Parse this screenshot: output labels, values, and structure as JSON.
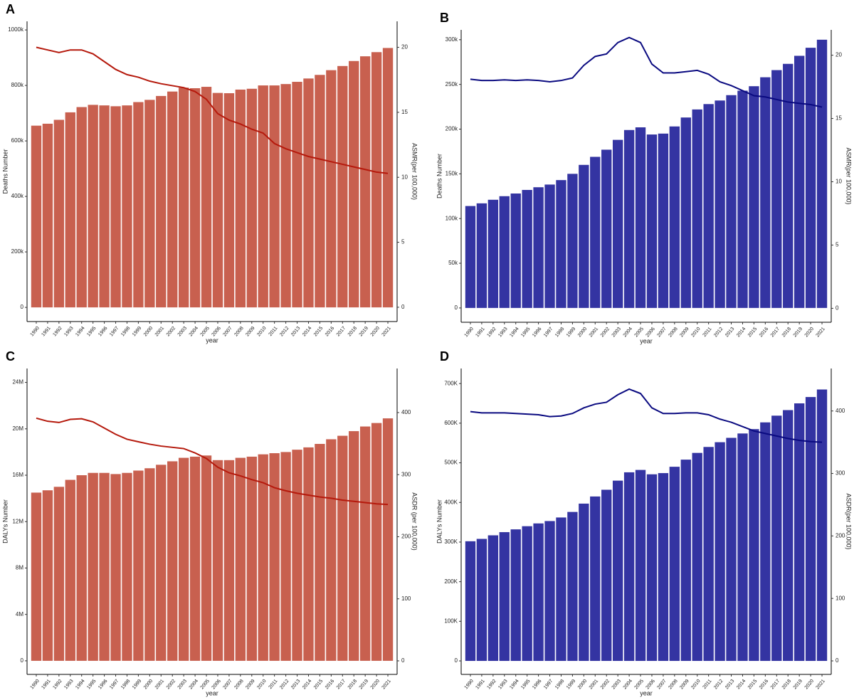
{
  "chart_data": [
    {
      "type": "bar",
      "label": "A",
      "xlabel": "year",
      "ylabel": "Deaths Number",
      "y2label": "ASMR(per 100,000)",
      "categories": [
        "1990",
        "1991",
        "1992",
        "1993",
        "1994",
        "1995",
        "1996",
        "1997",
        "1998",
        "1999",
        "2000",
        "2001",
        "2002",
        "2003",
        "2004",
        "2005",
        "2006",
        "2007",
        "2008",
        "2009",
        "2010",
        "2011",
        "2012",
        "2013",
        "2014",
        "2015",
        "2016",
        "2017",
        "2018",
        "2019",
        "2020",
        "2021"
      ],
      "ylim": [
        -51000,
        1031000
      ],
      "yticks": [
        0,
        {
          "value": 200000,
          "label": "200k"
        },
        {
          "value": 400000,
          "label": "400k"
        },
        {
          "value": 600000,
          "label": "600k"
        },
        {
          "value": 800000,
          "label": "800k"
        },
        {
          "value": 1000000,
          "label": "1000k"
        }
      ],
      "y2lim": [
        -1.1,
        22
      ],
      "y2ticks": [
        0,
        5,
        10,
        15,
        20
      ],
      "series": [
        {
          "type": "bar",
          "color": "#c8604f",
          "values": [
            655000,
            662000,
            676000,
            703000,
            722000,
            730000,
            728000,
            725000,
            728000,
            740000,
            748000,
            762000,
            778000,
            792000,
            790000,
            795000,
            773000,
            772000,
            785000,
            788000,
            800000,
            800000,
            805000,
            813000,
            825000,
            838000,
            855000,
            870000,
            888000,
            905000,
            920000,
            935000
          ]
        },
        {
          "type": "line",
          "axis": "y2",
          "color": "#b5190c",
          "values": [
            20.0,
            19.8,
            19.6,
            19.8,
            19.8,
            19.5,
            18.9,
            18.3,
            17.9,
            17.7,
            17.4,
            17.2,
            17.05,
            16.9,
            16.6,
            16.0,
            14.9,
            14.4,
            14.1,
            13.7,
            13.4,
            12.6,
            12.2,
            11.9,
            11.6,
            11.4,
            11.2,
            11.0,
            10.8,
            10.6,
            10.4,
            10.3
          ]
        }
      ]
    },
    {
      "type": "bar",
      "label": "B",
      "xlabel": "year",
      "ylabel": "Deaths Number",
      "y2label": "ASMR(per 100,000)",
      "categories": [
        "1990",
        "1991",
        "1992",
        "1993",
        "1994",
        "1995",
        "1996",
        "1997",
        "1998",
        "1999",
        "2000",
        "2001",
        "2002",
        "2003",
        "2004",
        "2005",
        "2006",
        "2007",
        "2008",
        "2009",
        "2010",
        "2011",
        "2012",
        "2013",
        "2014",
        "2015",
        "2016",
        "2017",
        "2018",
        "2019",
        "2020",
        "2021"
      ],
      "ylim": [
        -16000,
        311000
      ],
      "yticks": [
        0,
        {
          "value": 50000,
          "label": "50k"
        },
        {
          "value": 100000,
          "label": "100k"
        },
        {
          "value": 150000,
          "label": "150k"
        },
        {
          "value": 200000,
          "label": "200k"
        },
        {
          "value": 250000,
          "label": "250k"
        },
        {
          "value": 300000,
          "label": "300k"
        }
      ],
      "y2lim": [
        -1.1,
        22
      ],
      "y2ticks": [
        0,
        5,
        10,
        15,
        20
      ],
      "series": [
        {
          "type": "bar",
          "color": "#3434a2",
          "values": [
            114000,
            117000,
            121000,
            125000,
            128000,
            132000,
            135000,
            138000,
            143000,
            150000,
            160000,
            169000,
            177000,
            188000,
            199000,
            202000,
            194000,
            195000,
            203000,
            213000,
            222000,
            228000,
            232000,
            238000,
            243000,
            248000,
            258000,
            266000,
            273000,
            282000,
            291000,
            300000
          ]
        },
        {
          "type": "line",
          "axis": "y2",
          "color": "#0a0a80",
          "values": [
            18.1,
            18.0,
            18.0,
            18.05,
            18.0,
            18.05,
            18.0,
            17.9,
            18.0,
            18.2,
            19.2,
            19.9,
            20.1,
            21.0,
            21.4,
            21.0,
            19.3,
            18.6,
            18.6,
            18.7,
            18.8,
            18.5,
            17.9,
            17.6,
            17.2,
            16.8,
            16.7,
            16.5,
            16.3,
            16.2,
            16.1,
            15.9
          ]
        }
      ]
    },
    {
      "type": "bar",
      "label": "C",
      "xlabel": "year",
      "ylabel": "DALYs Number",
      "y2label": "ASDR (per 100,000)",
      "categories": [
        "1990",
        "1991",
        "1992",
        "1993",
        "1994",
        "1995",
        "1996",
        "1997",
        "1998",
        "1999",
        "2000",
        "2001",
        "2002",
        "2003",
        "2004",
        "2005",
        "2006",
        "2007",
        "2008",
        "2009",
        "2010",
        "2011",
        "2012",
        "2013",
        "2014",
        "2015",
        "2016",
        "2017",
        "2018",
        "2019",
        "2020",
        "2021"
      ],
      "ylim": [
        -1170000,
        25200000
      ],
      "yticks": [
        0,
        {
          "value": 4000000,
          "label": "4M"
        },
        {
          "value": 8000000,
          "label": "8M"
        },
        {
          "value": 12000000,
          "label": "12M"
        },
        {
          "value": 16000000,
          "label": "16M"
        },
        {
          "value": 20000000,
          "label": "20M"
        },
        {
          "value": 24000000,
          "label": "24M"
        }
      ],
      "y2lim": [
        -21.8,
        471
      ],
      "y2ticks": [
        0,
        100,
        200,
        300,
        400
      ],
      "series": [
        {
          "type": "bar",
          "color": "#c8604f",
          "values": [
            14500000,
            14700000,
            15000000,
            15600000,
            16000000,
            16200000,
            16200000,
            16100000,
            16200000,
            16400000,
            16600000,
            16900000,
            17200000,
            17500000,
            17600000,
            17700000,
            17300000,
            17300000,
            17500000,
            17600000,
            17800000,
            17900000,
            18000000,
            18200000,
            18400000,
            18700000,
            19100000,
            19400000,
            19800000,
            20200000,
            20500000,
            20900000
          ]
        },
        {
          "type": "line",
          "axis": "y2",
          "color": "#b5190c",
          "values": [
            391,
            386,
            384,
            389,
            390,
            385,
            375,
            365,
            357,
            353,
            349,
            346,
            344,
            342,
            335,
            326,
            312,
            303,
            298,
            292,
            287,
            279,
            274,
            270,
            267,
            264,
            262,
            259,
            257,
            255,
            253,
            252
          ]
        }
      ]
    },
    {
      "type": "bar",
      "label": "D",
      "xlabel": "year",
      "ylabel": "DALYs Number",
      "y2label": "ASDR(per 100,000)",
      "categories": [
        "1990",
        "1991",
        "1992",
        "1993",
        "1994",
        "1995",
        "1996",
        "1997",
        "1998",
        "1999",
        "2000",
        "2001",
        "2002",
        "2003",
        "2004",
        "2005",
        "2006",
        "2007",
        "2008",
        "2009",
        "2010",
        "2011",
        "2012",
        "2013",
        "2014",
        "2015",
        "2016",
        "2017",
        "2018",
        "2019",
        "2020",
        "2021"
      ],
      "ylim": [
        -34000,
        738000
      ],
      "yticks": [
        0,
        {
          "value": 100000,
          "label": "100K"
        },
        {
          "value": 200000,
          "label": "200K"
        },
        {
          "value": 300000,
          "label": "300K"
        },
        {
          "value": 400000,
          "label": "400K"
        },
        {
          "value": 500000,
          "label": "500K"
        },
        {
          "value": 600000,
          "label": "600K"
        },
        {
          "value": 700000,
          "label": "700K"
        }
      ],
      "y2lim": [
        -21.6,
        468
      ],
      "y2ticks": [
        0,
        100,
        200,
        300,
        400
      ],
      "series": [
        {
          "type": "bar",
          "color": "#3434a2",
          "values": [
            302000,
            308000,
            317000,
            325000,
            332000,
            340000,
            347000,
            353000,
            362000,
            376000,
            397000,
            415000,
            432000,
            455000,
            476000,
            482000,
            471000,
            474000,
            490000,
            508000,
            525000,
            540000,
            552000,
            563000,
            574000,
            585000,
            602000,
            619000,
            633000,
            650000,
            666000,
            685000
          ]
        },
        {
          "type": "line",
          "axis": "y2",
          "color": "#0a0a80",
          "values": [
            399,
            397,
            397,
            397,
            396,
            395,
            394,
            391,
            392,
            396,
            405,
            411,
            414,
            426,
            435,
            428,
            405,
            396,
            396,
            397,
            397,
            394,
            387,
            382,
            375,
            368,
            364,
            360,
            356,
            353,
            351,
            350
          ]
        }
      ]
    }
  ]
}
